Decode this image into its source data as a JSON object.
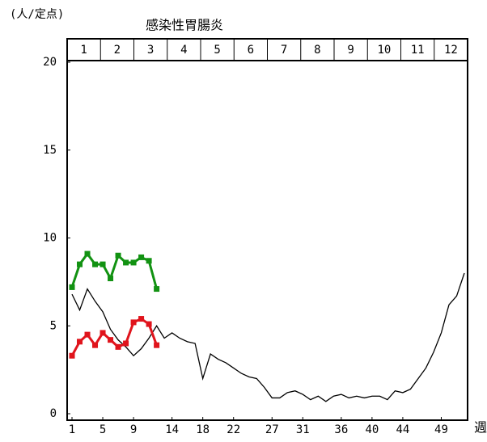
{
  "chart_data": {
    "type": "line",
    "title": "感染性胃腸炎",
    "y_label": "(人/定点)",
    "x_label": "週",
    "months": [
      "1",
      "2",
      "3",
      "4",
      "5",
      "6",
      "7",
      "8",
      "9",
      "10",
      "11",
      "12"
    ],
    "x": [
      1,
      2,
      3,
      4,
      5,
      6,
      7,
      8,
      9,
      10,
      11,
      12,
      13,
      14,
      15,
      16,
      17,
      18,
      19,
      20,
      21,
      22,
      23,
      24,
      25,
      26,
      27,
      28,
      29,
      30,
      31,
      32,
      33,
      34,
      35,
      36,
      37,
      38,
      39,
      40,
      41,
      42,
      43,
      44,
      45,
      46,
      47,
      48,
      49,
      50,
      51,
      52
    ],
    "xlim": [
      1,
      52
    ],
    "xticks": [
      1,
      5,
      9,
      14,
      18,
      22,
      27,
      31,
      36,
      40,
      44,
      49
    ],
    "ylim": [
      0,
      20
    ],
    "yticks": [
      0,
      5,
      10,
      15,
      20
    ],
    "grid": false,
    "series": [
      {
        "color": "#000000",
        "marker": false,
        "values": [
          6.8,
          5.9,
          7.1,
          6.4,
          5.8,
          4.8,
          4.2,
          3.8,
          3.3,
          3.7,
          4.3,
          5.0,
          4.3,
          4.6,
          4.3,
          4.1,
          4.0,
          2.0,
          3.4,
          3.1,
          2.9,
          2.6,
          2.3,
          2.1,
          2.0,
          1.5,
          0.9,
          0.9,
          1.2,
          1.3,
          1.1,
          0.8,
          1.0,
          0.7,
          1.0,
          1.1,
          0.9,
          1.0,
          0.9,
          1.0,
          1.0,
          0.8,
          1.3,
          1.2,
          1.4,
          2.0,
          2.6,
          3.5,
          4.6,
          6.2,
          6.7,
          8.0
        ]
      },
      {
        "color": "#129212",
        "marker": true,
        "values": [
          7.2,
          8.5,
          9.1,
          8.5,
          8.5,
          7.7,
          9.0,
          8.6,
          8.6,
          8.9,
          8.7,
          7.1,
          null,
          null,
          null,
          null,
          null,
          null,
          null,
          null,
          null,
          null,
          null,
          null,
          null,
          null,
          null,
          null,
          null,
          null,
          null,
          null,
          null,
          null,
          null,
          null,
          null,
          null,
          null,
          null,
          null,
          null,
          null,
          null,
          null,
          null,
          null,
          null,
          null,
          null,
          null,
          null
        ]
      },
      {
        "color": "#e0141c",
        "marker": true,
        "values": [
          3.3,
          4.1,
          4.5,
          3.9,
          4.6,
          4.2,
          3.8,
          4.0,
          5.2,
          5.4,
          5.1,
          3.9,
          null,
          null,
          null,
          null,
          null,
          null,
          null,
          null,
          null,
          null,
          null,
          null,
          null,
          null,
          null,
          null,
          null,
          null,
          null,
          null,
          null,
          null,
          null,
          null,
          null,
          null,
          null,
          null,
          null,
          null,
          null,
          null,
          null,
          null,
          null,
          null,
          null,
          null,
          null,
          null
        ]
      }
    ]
  }
}
